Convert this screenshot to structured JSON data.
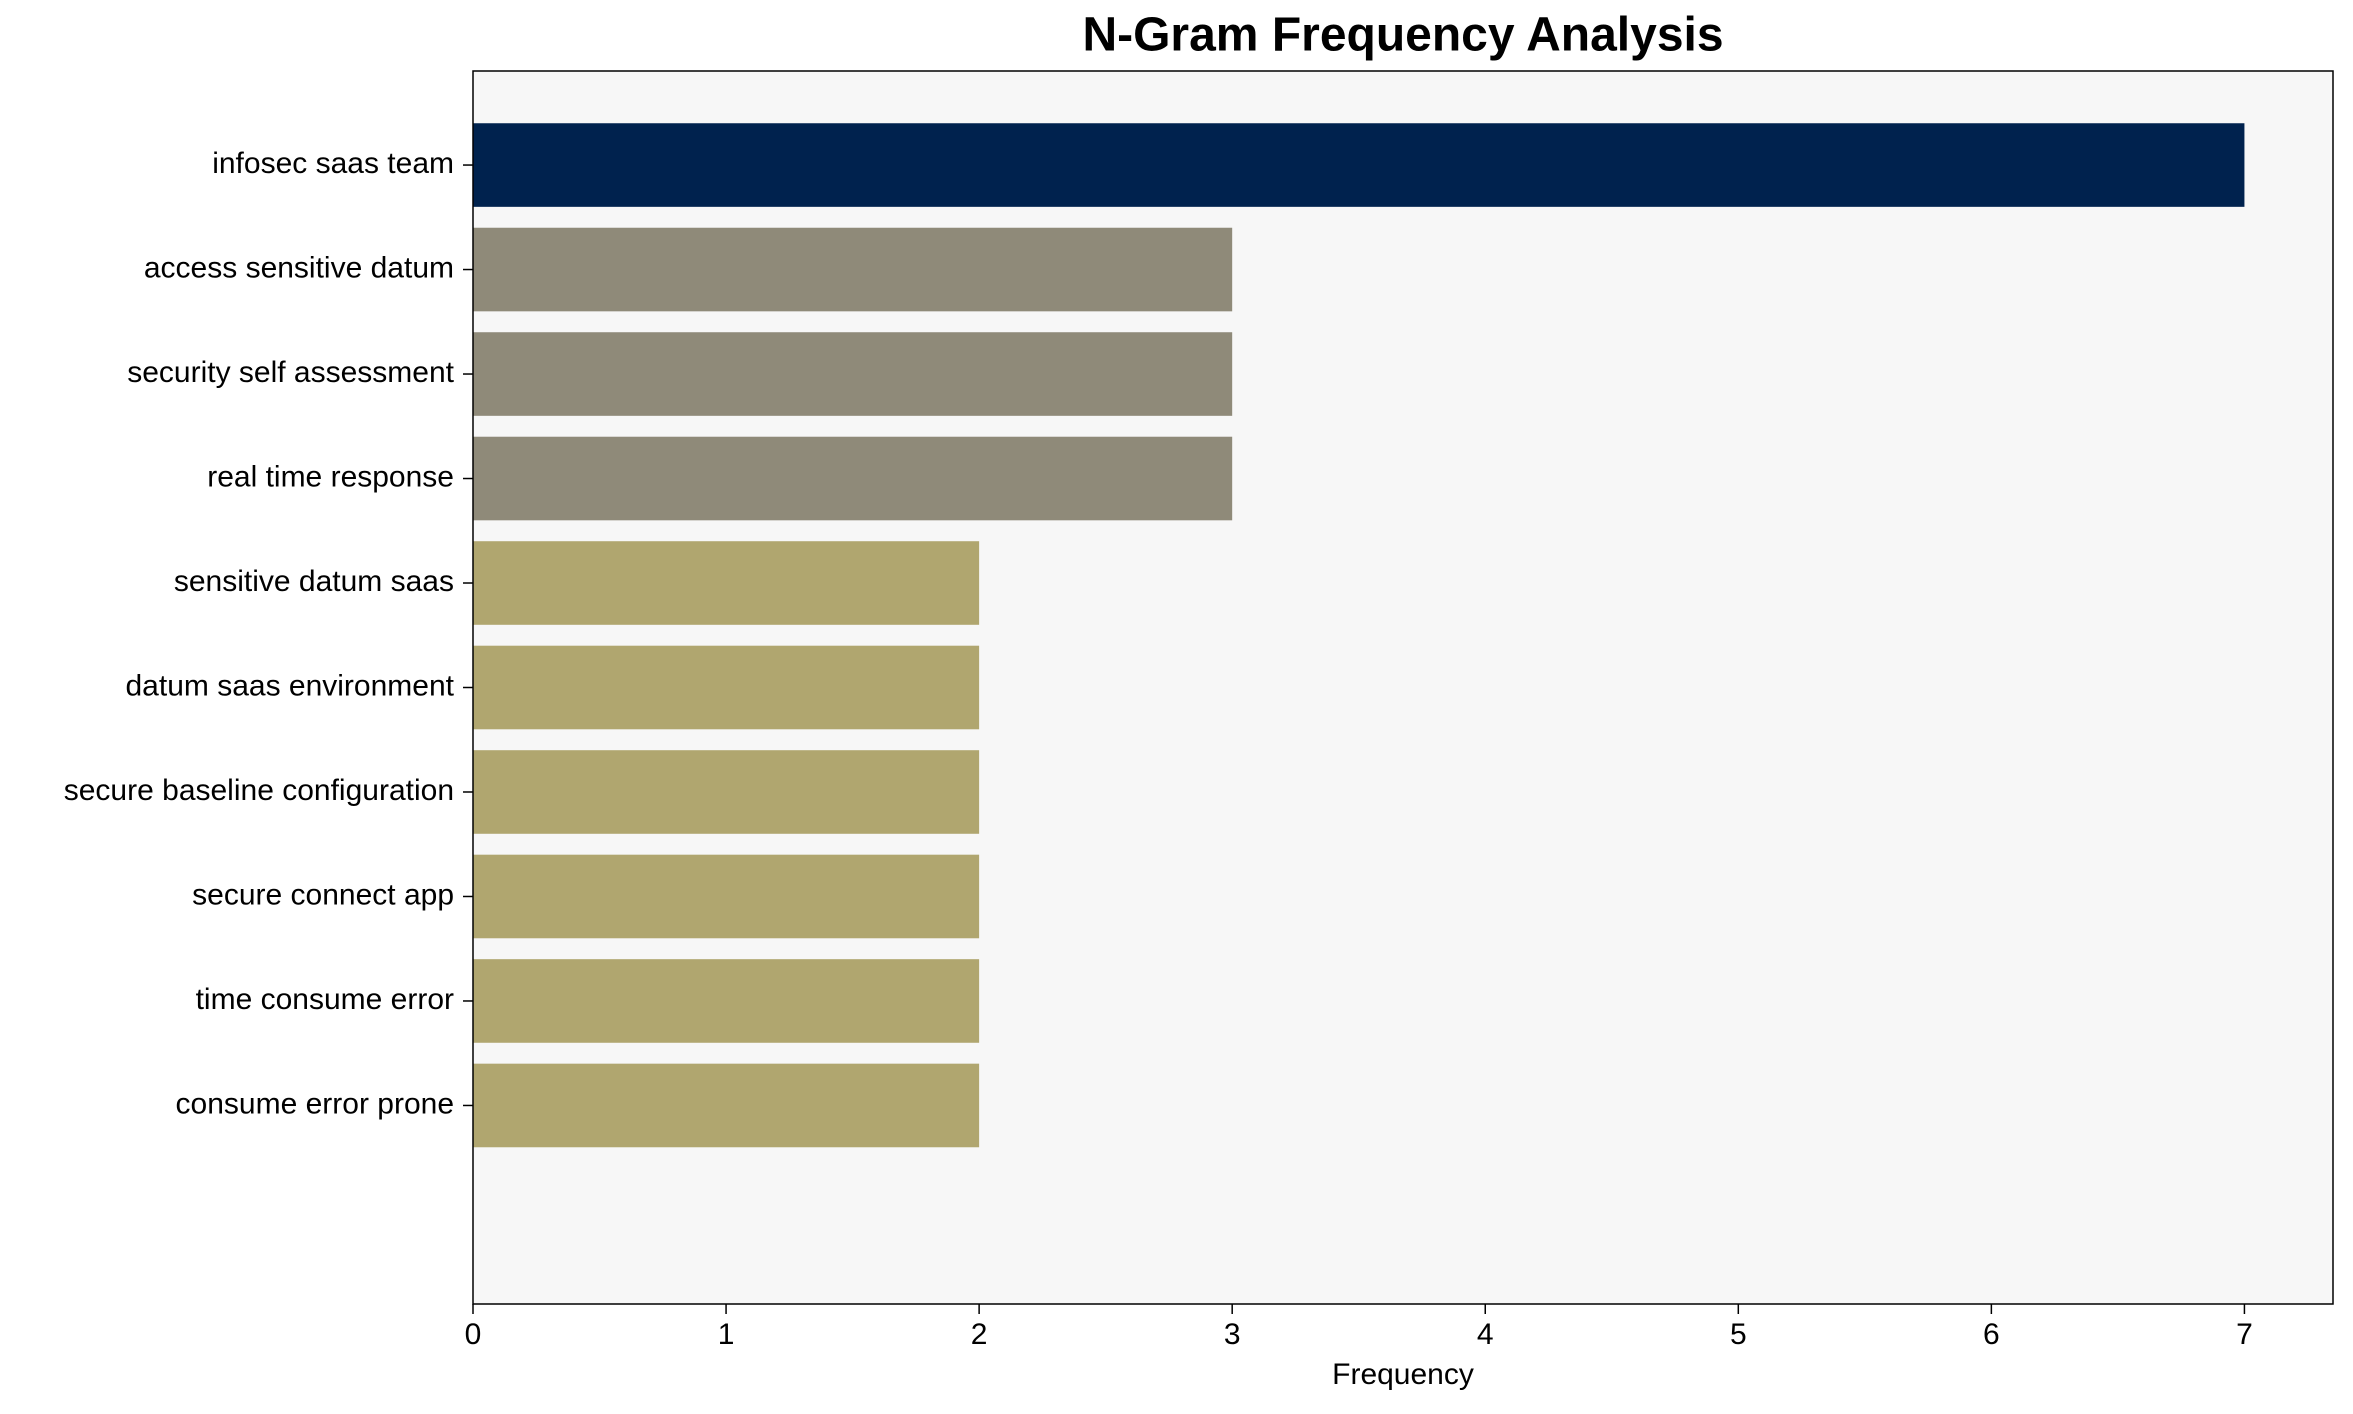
{
  "chart_data": {
    "type": "barh",
    "title": "N-Gram Frequency Analysis",
    "xlabel": "Frequency",
    "categories": [
      "infosec saas team",
      "access sensitive datum",
      "security self assessment",
      "real time response",
      "sensitive datum saas",
      "datum saas environment",
      "secure baseline configuration",
      "secure connect app",
      "time consume error",
      "consume error prone"
    ],
    "values": [
      7,
      3,
      3,
      3,
      2,
      2,
      2,
      2,
      2,
      2
    ],
    "colors": [
      "#00224e",
      "#8f8a79",
      "#8f8a79",
      "#8f8a79",
      "#b0a66f",
      "#b0a66f",
      "#b0a66f",
      "#b0a66f",
      "#b0a66f",
      "#b0a66f"
    ],
    "xlim": [
      0,
      7.35
    ],
    "xticks": [
      0,
      1,
      2,
      3,
      4,
      5,
      6,
      7
    ],
    "grid": false
  }
}
